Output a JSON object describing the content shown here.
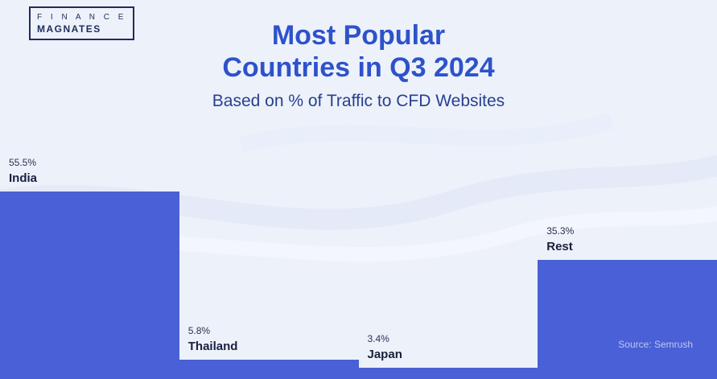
{
  "logo": {
    "line1": "F I N A N C E",
    "line2": "MAGNATES"
  },
  "header": {
    "title_line1": "Most Popular",
    "title_line2": "Countries in Q3 2024",
    "subtitle": "Based on % of Traffic to CFD Websites"
  },
  "source": "Source: Semrush",
  "colors": {
    "bar": "#4a60d6",
    "title": "#2d52cb",
    "subtitle": "#27408f",
    "background": "#edf1fa",
    "category_label": "#17203d",
    "value_label": "#2b3350",
    "source_text": "#bdc7ec",
    "logo": "#1e2d5a"
  },
  "chart_data": {
    "type": "bar",
    "title": "Most Popular Countries in Q3 2024",
    "subtitle": "Based on % of Traffic to CFD Websites",
    "categories": [
      "India",
      "Thailand",
      "Japan",
      "Rest"
    ],
    "values": [
      55.5,
      5.8,
      3.4,
      35.3
    ],
    "value_labels": [
      "55.5%",
      "5.8%",
      "3.4%",
      "35.3%"
    ],
    "unit": "% of traffic to CFD websites",
    "ylim": [
      0,
      60
    ],
    "grid": false,
    "legend": false,
    "source": "Source: Semrush"
  }
}
